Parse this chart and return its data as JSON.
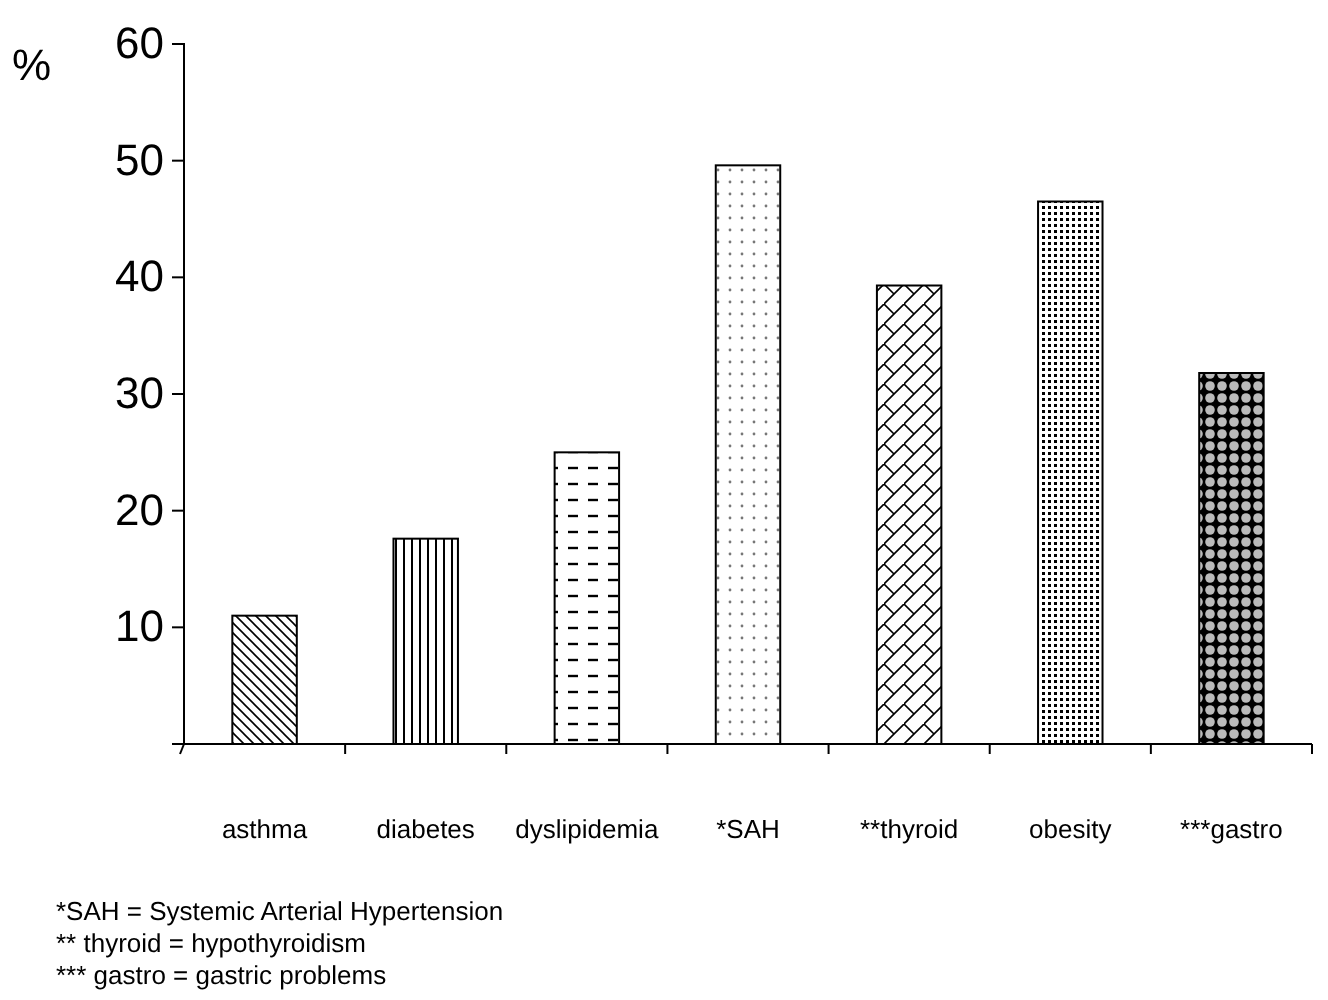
{
  "chart_data": {
    "type": "bar",
    "ylabel": "%",
    "categories": [
      "asthma",
      "diabetes",
      "dyslipidemia",
      "*SAH",
      "**thyroid",
      "obesity",
      "***gastro"
    ],
    "values": [
      11,
      17.6,
      25,
      49.6,
      39.3,
      46.5,
      31.8
    ],
    "color": "#000000",
    "ylim": [
      0,
      60
    ],
    "yticks": [
      {
        "value": 0,
        "label": null
      },
      10,
      20,
      30,
      40,
      50,
      60
    ],
    "grid": false,
    "annotations": [
      "*SAH = Systemic Arterial Hypertension",
      "** thyroid = hypothyroidism",
      "*** gastro = gastric problems"
    ]
  }
}
